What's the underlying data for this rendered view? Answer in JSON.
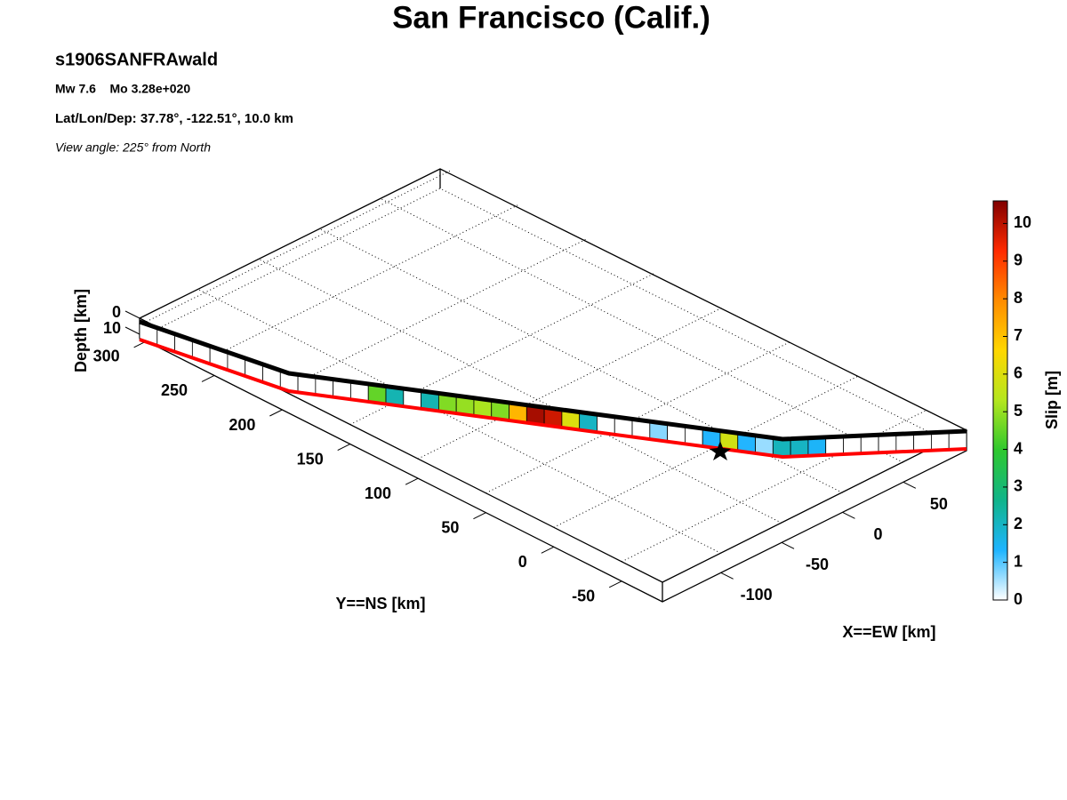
{
  "chart_data": {
    "type": "fault-slip-3d",
    "title": "San Francisco (Calif.)",
    "subtitle": "s1906SANFRAwald",
    "info_lines": [
      "Mw 7.6    Mo 3.28e+020",
      "Lat/Lon/Dep: 37.78°, -122.51°, 10.0 km"
    ],
    "view_note": "View angle: 225° from North",
    "xlabel": "X==EW [km]",
    "ylabel": "Y==NS [km]",
    "zlabel": "Depth [km]",
    "xlim": [
      -148,
      102
    ],
    "xticks": [
      -100,
      -50,
      0,
      50
    ],
    "ylim": [
      -80,
      305
    ],
    "yticks": [
      -50,
      0,
      50,
      100,
      150,
      200,
      250,
      300
    ],
    "zlim": [
      0,
      10
    ],
    "zticks": [
      0,
      10
    ],
    "grid": true,
    "colorbar_label": "Slip [m]",
    "clim": [
      0,
      10.6
    ],
    "cticks": [
      0,
      1,
      2,
      3,
      4,
      5,
      6,
      7,
      8,
      9,
      10
    ],
    "colormap": [
      "#ffffff",
      "#1eb4ff",
      "#10b48a",
      "#2ec82e",
      "#b4e61e",
      "#ffd700",
      "#ff8c00",
      "#ff2a00",
      "#800000"
    ],
    "slip": [
      0,
      0,
      0,
      0,
      0,
      0,
      0,
      0,
      0,
      0,
      0,
      0,
      0,
      4.5,
      2.2,
      0,
      2.2,
      4.8,
      5,
      5.2,
      4.8,
      7.2,
      10.2,
      9.8,
      6,
      2,
      0,
      0,
      0,
      0.7,
      0,
      0,
      1.3,
      5.8,
      1.3,
      0.6,
      2.1,
      2,
      1.4,
      0,
      0,
      0,
      0,
      0,
      0,
      0,
      0
    ]
  }
}
